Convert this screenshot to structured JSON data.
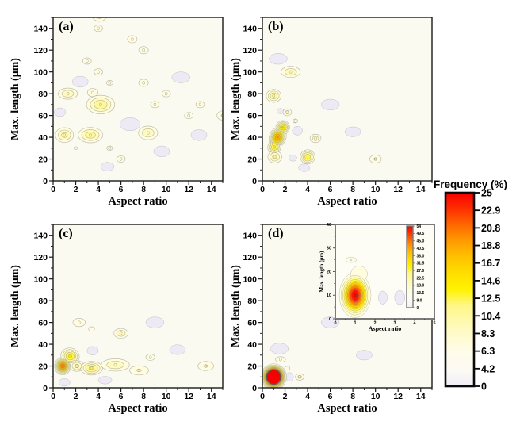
{
  "colorbar": {
    "title": "Frequency (%)",
    "labels": [
      "25",
      "22.9",
      "20.8",
      "18.8",
      "16.7",
      "14.6",
      "12.5",
      "10.4",
      "8.3",
      "6.3",
      "4.2",
      "0"
    ]
  },
  "colors": {
    "plot_bg": "#fbfaf1",
    "inset_bg": "#fdfcf5",
    "low_region": "#edeaf6",
    "contour_line": "#8c8c80",
    "frame": "#1a1a1a",
    "inset_frame": "#7a7a7a",
    "max_red": "#f60000"
  },
  "colormap_stops": [
    {
      "t": 0.0,
      "c": "#f1eef9"
    },
    {
      "t": 0.08,
      "c": "#fbfaf3"
    },
    {
      "t": 0.17,
      "c": "#fffceb"
    },
    {
      "t": 0.25,
      "c": "#fffbd2"
    },
    {
      "t": 0.33,
      "c": "#fff9b0"
    },
    {
      "t": 0.42,
      "c": "#fff786"
    },
    {
      "t": 0.5,
      "c": "#fff200"
    },
    {
      "t": 0.58,
      "c": "#ffdf00"
    },
    {
      "t": 0.67,
      "c": "#ffc100"
    },
    {
      "t": 0.75,
      "c": "#ff9b00"
    },
    {
      "t": 0.83,
      "c": "#ff6a00"
    },
    {
      "t": 0.92,
      "c": "#ff2d00"
    },
    {
      "t": 1.0,
      "c": "#f60000"
    }
  ],
  "chart_data": [
    {
      "type": "contour",
      "panel_label": "(a)",
      "xlabel": "Aspect ratio",
      "ylabel": "Max. length (μm)",
      "xlim": [
        0,
        15
      ],
      "ylim": [
        0,
        150
      ],
      "xticks": [
        0,
        2,
        4,
        6,
        8,
        10,
        12,
        14
      ],
      "yticks": [
        0,
        20,
        40,
        60,
        80,
        100,
        120,
        140
      ],
      "vmax": 25,
      "peaks": [
        {
          "x": 4.1,
          "y": 151,
          "v": 7,
          "sx": 0.6,
          "sy": 4.5
        },
        {
          "x": 4,
          "y": 140,
          "v": 6,
          "sx": 0.45,
          "sy": 3.5
        },
        {
          "x": 7,
          "y": 130,
          "v": 6,
          "sx": 0.5,
          "sy": 4
        },
        {
          "x": 8,
          "y": 120,
          "v": 6,
          "sx": 0.5,
          "sy": 4
        },
        {
          "x": 3,
          "y": 110,
          "v": 6,
          "sx": 0.45,
          "sy": 3.5
        },
        {
          "x": 4,
          "y": 100,
          "v": 6,
          "sx": 0.45,
          "sy": 3.5
        },
        {
          "x": 5,
          "y": 90,
          "v": 5.5,
          "sx": 0.4,
          "sy": 3
        },
        {
          "x": 8,
          "y": 90,
          "v": 6,
          "sx": 0.5,
          "sy": 4
        },
        {
          "x": 1.3,
          "y": 80,
          "v": 8,
          "sx": 0.75,
          "sy": 4.5
        },
        {
          "x": 3.5,
          "y": 81,
          "v": 6,
          "sx": 0.55,
          "sy": 4.5
        },
        {
          "x": 4.2,
          "y": 70,
          "v": 10,
          "sx": 0.95,
          "sy": 6.5
        },
        {
          "x": 9,
          "y": 70,
          "v": 6,
          "sx": 0.45,
          "sy": 3.5
        },
        {
          "x": 10,
          "y": 80,
          "v": 6,
          "sx": 0.45,
          "sy": 3.5
        },
        {
          "x": 12,
          "y": 60,
          "v": 6,
          "sx": 0.45,
          "sy": 3.5
        },
        {
          "x": 13,
          "y": 70,
          "v": 6,
          "sx": 0.45,
          "sy": 3.5
        },
        {
          "x": 15,
          "y": 60,
          "v": 6.5,
          "sx": 0.55,
          "sy": 4.5
        },
        {
          "x": 1,
          "y": 42,
          "v": 9,
          "sx": 0.65,
          "sy": 5.5
        },
        {
          "x": 3.3,
          "y": 42,
          "v": 9.5,
          "sx": 0.85,
          "sy": 5.5
        },
        {
          "x": 2,
          "y": 30,
          "v": 5,
          "sx": 0.28,
          "sy": 2.2
        },
        {
          "x": 5,
          "y": 30,
          "v": 5.5,
          "sx": 0.35,
          "sy": 2.8
        },
        {
          "x": 6,
          "y": 20,
          "v": 6,
          "sx": 0.45,
          "sy": 3.5
        },
        {
          "x": 8.4,
          "y": 44,
          "v": 8,
          "sx": 0.75,
          "sy": 5.5
        }
      ],
      "low_density_regions": [
        {
          "x": 6.8,
          "y": 52,
          "rx": 0.9,
          "ry": 6
        },
        {
          "x": 2.4,
          "y": 91,
          "rx": 0.7,
          "ry": 5
        },
        {
          "x": 11.3,
          "y": 95,
          "rx": 0.8,
          "ry": 5
        },
        {
          "x": 12.9,
          "y": 42,
          "rx": 0.7,
          "ry": 5
        },
        {
          "x": 9.6,
          "y": 27,
          "rx": 0.7,
          "ry": 5
        },
        {
          "x": 0.6,
          "y": 63,
          "rx": 0.5,
          "ry": 4
        },
        {
          "x": 4.8,
          "y": 13,
          "rx": 0.6,
          "ry": 4
        }
      ]
    },
    {
      "type": "contour",
      "panel_label": "(b)",
      "xlabel": "Aspect ratio",
      "ylabel": "Max. length (μm)",
      "xlim": [
        0,
        15
      ],
      "ylim": [
        0,
        150
      ],
      "xticks": [
        0,
        2,
        4,
        6,
        8,
        10,
        12,
        14
      ],
      "yticks": [
        0,
        20,
        40,
        60,
        80,
        100,
        120,
        140
      ],
      "vmax": 25,
      "peaks": [
        {
          "x": 1.35,
          "y": 40,
          "v": 19,
          "sx": 0.42,
          "sy": 5.5,
          "rot": 24
        },
        {
          "x": 1.8,
          "y": 49,
          "v": 15,
          "sx": 0.38,
          "sy": 4,
          "rot": 24
        },
        {
          "x": 1.05,
          "y": 31,
          "v": 13,
          "sx": 0.38,
          "sy": 4.5,
          "rot": 12
        },
        {
          "x": 1.1,
          "y": 22,
          "v": 9,
          "sx": 0.5,
          "sy": 4.5
        },
        {
          "x": 1,
          "y": 78,
          "v": 10,
          "sx": 0.5,
          "sy": 4.5
        },
        {
          "x": 2.5,
          "y": 100,
          "v": 8,
          "sx": 0.75,
          "sy": 4.5
        },
        {
          "x": 2.2,
          "y": 63,
          "v": 7,
          "sx": 0.38,
          "sy": 3.2
        },
        {
          "x": 4,
          "y": 22,
          "v": 12,
          "sx": 0.45,
          "sy": 4.5
        },
        {
          "x": 4.7,
          "y": 39,
          "v": 7.5,
          "sx": 0.45,
          "sy": 3.5
        },
        {
          "x": 10,
          "y": 20,
          "v": 6.5,
          "sx": 0.55,
          "sy": 4
        },
        {
          "x": 2.9,
          "y": 55,
          "v": 5.5,
          "sx": 0.3,
          "sy": 2.5
        }
      ],
      "low_density_regions": [
        {
          "x": 3.1,
          "y": 46,
          "rx": 0.45,
          "ry": 4
        },
        {
          "x": 2.7,
          "y": 21,
          "rx": 0.35,
          "ry": 3
        },
        {
          "x": 1.6,
          "y": 64,
          "rx": 0.3,
          "ry": 2.5
        },
        {
          "x": 3.7,
          "y": 12,
          "rx": 0.5,
          "ry": 3.5
        },
        {
          "x": 1.4,
          "y": 112,
          "rx": 0.8,
          "ry": 5
        },
        {
          "x": 6,
          "y": 70,
          "rx": 0.8,
          "ry": 5
        },
        {
          "x": 8,
          "y": 45,
          "rx": 0.7,
          "ry": 4.5
        }
      ]
    },
    {
      "type": "contour",
      "panel_label": "(c)",
      "xlabel": "Aspect ratio",
      "ylabel": "Max. length (μm)",
      "xlim": [
        0,
        15
      ],
      "ylim": [
        0,
        150
      ],
      "xticks": [
        0,
        2,
        4,
        6,
        8,
        10,
        12,
        14
      ],
      "yticks": [
        0,
        20,
        40,
        60,
        80,
        100,
        120,
        140
      ],
      "vmax": 25,
      "peaks": [
        {
          "x": 0.85,
          "y": 20,
          "v": 21,
          "sx": 0.4,
          "sy": 4.5
        },
        {
          "x": 1.5,
          "y": 29,
          "v": 13,
          "sx": 0.55,
          "sy": 5,
          "rot": 18
        },
        {
          "x": 2.1,
          "y": 20,
          "v": 9,
          "sx": 0.5,
          "sy": 4
        },
        {
          "x": 3.4,
          "y": 18,
          "v": 11,
          "sx": 0.7,
          "sy": 4.5
        },
        {
          "x": 5.5,
          "y": 21,
          "v": 8,
          "sx": 1.1,
          "sy": 5
        },
        {
          "x": 7.6,
          "y": 16,
          "v": 6.5,
          "sx": 0.9,
          "sy": 4.5
        },
        {
          "x": 6,
          "y": 50,
          "v": 8,
          "sx": 0.55,
          "sy": 4
        },
        {
          "x": 2.3,
          "y": 60,
          "v": 6,
          "sx": 0.65,
          "sy": 4.5
        },
        {
          "x": 3.4,
          "y": 54,
          "v": 5,
          "sx": 0.45,
          "sy": 3.5
        },
        {
          "x": 13.5,
          "y": 20,
          "v": 6.5,
          "sx": 0.75,
          "sy": 4.5
        },
        {
          "x": 8.6,
          "y": 28,
          "v": 5.5,
          "sx": 0.55,
          "sy": 4
        }
      ],
      "low_density_regions": [
        {
          "x": 3.5,
          "y": 34,
          "rx": 0.5,
          "ry": 4
        },
        {
          "x": 1,
          "y": 5,
          "rx": 0.5,
          "ry": 3.5
        },
        {
          "x": 4.6,
          "y": 7,
          "rx": 0.6,
          "ry": 3.5
        },
        {
          "x": 9,
          "y": 60,
          "rx": 0.8,
          "ry": 5
        },
        {
          "x": 11,
          "y": 35,
          "rx": 0.7,
          "ry": 4.5
        }
      ]
    },
    {
      "type": "contour",
      "panel_label": "(d)",
      "xlabel": "Aspect ratio",
      "ylabel": "Max. length (μm)",
      "xlim": [
        0,
        15
      ],
      "ylim": [
        0,
        150
      ],
      "xticks": [
        0,
        2,
        4,
        6,
        8,
        10,
        12,
        14
      ],
      "yticks": [
        0,
        20,
        40,
        60,
        80,
        100,
        120,
        140
      ],
      "vmax": 25,
      "peaks": [
        {
          "x": 1,
          "y": 10,
          "v": 54,
          "sx": 0.5,
          "sy": 5.3
        },
        {
          "x": 3.3,
          "y": 10,
          "v": 7,
          "sx": 0.38,
          "sy": 3
        },
        {
          "x": 1.6,
          "y": 26,
          "v": 5.5,
          "sx": 0.6,
          "sy": 3.5
        },
        {
          "x": 2.2,
          "y": 18,
          "v": 5,
          "sx": 0.4,
          "sy": 3
        }
      ],
      "low_density_regions": [
        {
          "x": 2.4,
          "y": 10,
          "rx": 0.35,
          "ry": 4
        },
        {
          "x": 1.5,
          "y": 36,
          "rx": 0.8,
          "ry": 5
        },
        {
          "x": 6,
          "y": 60,
          "rx": 0.8,
          "ry": 5
        },
        {
          "x": 9,
          "y": 30,
          "rx": 0.7,
          "ry": 4.5
        }
      ]
    },
    {
      "type": "contour",
      "xlabel": "Aspect ratio",
      "ylabel": "Max. length (μm)",
      "xlim": [
        0,
        5
      ],
      "ylim": [
        0,
        40
      ],
      "xticks": [
        0,
        1,
        2,
        3,
        4,
        5
      ],
      "yticks": [
        0,
        10,
        20,
        30,
        40
      ],
      "vmax": 54,
      "colorbar_labels": [
        "54",
        "49.5",
        "45.0",
        "40.5",
        "36.0",
        "31.5",
        "27.0",
        "22.5",
        "18.0",
        "13.5",
        "9.0",
        "0"
      ],
      "peaks": [
        {
          "x": 1,
          "y": 10,
          "v": 55,
          "sx": 0.42,
          "sy": 5
        },
        {
          "x": 1.2,
          "y": 19,
          "v": 12,
          "sx": 0.55,
          "sy": 4.5
        },
        {
          "x": 0.8,
          "y": 25,
          "v": 10,
          "sx": 0.6,
          "sy": 2.5
        }
      ],
      "low_density_regions": [
        {
          "x": 2.4,
          "y": 9,
          "rx": 0.22,
          "ry": 2.8
        },
        {
          "x": 3.25,
          "y": 9,
          "rx": 0.26,
          "ry": 3
        }
      ]
    }
  ]
}
